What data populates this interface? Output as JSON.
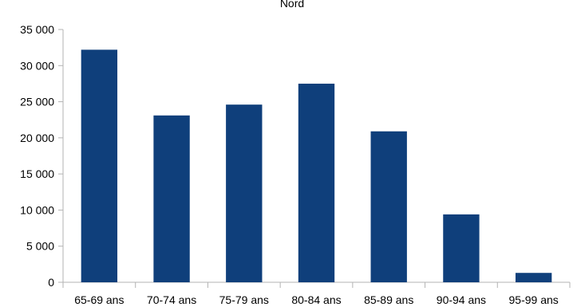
{
  "chart_data": {
    "type": "bar",
    "title": "Nord",
    "categories": [
      "65-69 ans",
      "70-74 ans",
      "75-79 ans",
      "80-84 ans",
      "85-89 ans",
      "90-94 ans",
      "95-99 ans"
    ],
    "values": [
      32200,
      23100,
      24600,
      27500,
      20900,
      9400,
      1300
    ],
    "ylim": [
      0,
      35000
    ],
    "yticks": [
      0,
      5000,
      10000,
      15000,
      20000,
      25000,
      30000,
      35000
    ],
    "ytick_labels": [
      "0",
      "5 000",
      "10 000",
      "15 000",
      "20 000",
      "25 000",
      "30 000",
      "35 000"
    ],
    "xlabel": "",
    "ylabel": "",
    "grid": false,
    "legend": "none",
    "bar_color": "#0f3f7b"
  }
}
